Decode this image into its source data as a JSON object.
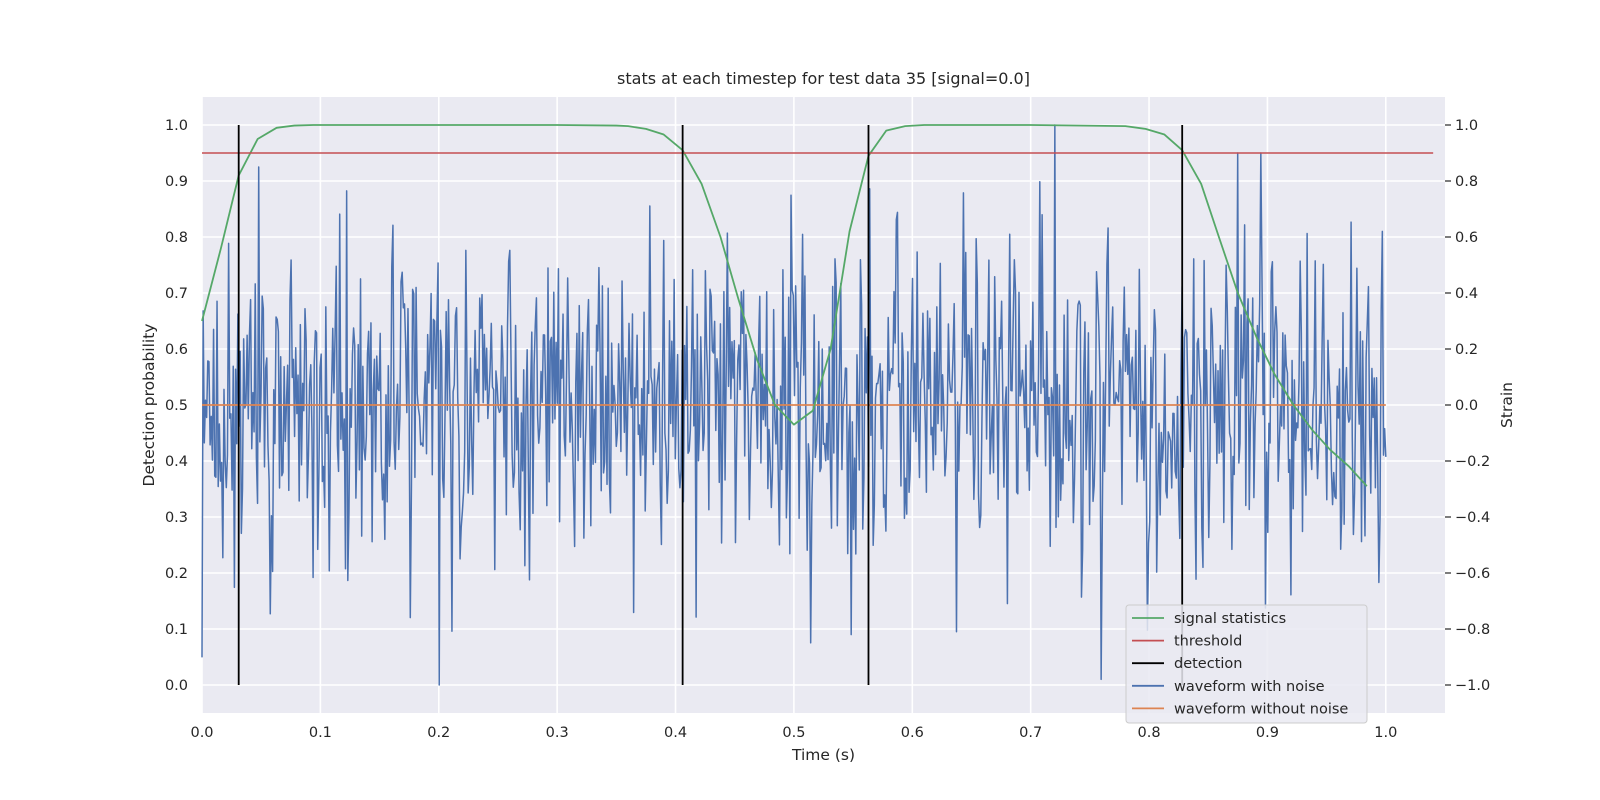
{
  "chart_data": {
    "type": "line",
    "title": "stats at each timestep for test data 35 [signal=0.0]",
    "xlabel": "Time (s)",
    "ylabel_left": "Detection probability",
    "ylabel_right": "Strain",
    "xlim": [
      0.0,
      1.05
    ],
    "ylim_left": [
      -0.05,
      1.05
    ],
    "ylim_right": [
      -1.1,
      1.1
    ],
    "x_ticks": [
      "0.0",
      "0.1",
      "0.2",
      "0.3",
      "0.4",
      "0.5",
      "0.6",
      "0.7",
      "0.8",
      "0.9",
      "1.0"
    ],
    "y_ticks_left": [
      "0.0",
      "0.1",
      "0.2",
      "0.3",
      "0.4",
      "0.5",
      "0.6",
      "0.7",
      "0.8",
      "0.9",
      "1.0"
    ],
    "y_ticks_right": [
      "−1.0",
      "−0.8",
      "−0.6",
      "−0.4",
      "−0.2",
      "0.0",
      "0.2",
      "0.4",
      "0.6",
      "0.8",
      "1.0"
    ],
    "grid": true,
    "legend_position": "lower-right",
    "series": [
      {
        "name": "signal statistics",
        "color": "#55a868",
        "axis": "left",
        "x": [
          0.0,
          0.016,
          0.031,
          0.047,
          0.063,
          0.078,
          0.094,
          0.11,
          0.2,
          0.3,
          0.35,
          0.36,
          0.375,
          0.39,
          0.406,
          0.422,
          0.438,
          0.453,
          0.469,
          0.484,
          0.5,
          0.516,
          0.531,
          0.547,
          0.563,
          0.578,
          0.594,
          0.61,
          0.7,
          0.78,
          0.797,
          0.813,
          0.828,
          0.844,
          0.859,
          0.875,
          0.891,
          0.906,
          0.922,
          0.938,
          0.953,
          0.969,
          0.984
        ],
        "values": [
          0.65,
          0.78,
          0.91,
          0.975,
          0.995,
          0.999,
          1.0,
          1.0,
          1.0,
          1.0,
          0.999,
          0.998,
          0.993,
          0.983,
          0.955,
          0.895,
          0.8,
          0.69,
          0.58,
          0.5,
          0.465,
          0.49,
          0.6,
          0.81,
          0.945,
          0.99,
          0.998,
          1.0,
          1.0,
          0.998,
          0.993,
          0.983,
          0.955,
          0.895,
          0.8,
          0.7,
          0.62,
          0.555,
          0.5,
          0.455,
          0.42,
          0.39,
          0.355
        ]
      },
      {
        "name": "threshold",
        "color": "#c44e52",
        "axis": "left",
        "x": [
          0.0,
          1.04
        ],
        "values": [
          0.95,
          0.95
        ]
      },
      {
        "name": "detection",
        "color": "#000000",
        "axis": "left",
        "x": [
          0.031,
          0.406,
          0.563,
          0.828
        ],
        "values": [
          [
            0.0,
            1.0
          ],
          [
            0.0,
            1.0
          ],
          [
            0.0,
            1.0
          ],
          [
            0.0,
            1.0
          ]
        ]
      },
      {
        "name": "waveform with noise",
        "color": "#4c72b0",
        "axis": "right",
        "x_range": [
          0.0,
          1.0
        ],
        "noise_std": 0.28,
        "marked_points": [
          {
            "x": 0.048,
            "y": 0.85
          },
          {
            "x": 0.2,
            "y": -1.0
          },
          {
            "x": 0.72,
            "y": 1.0
          },
          {
            "x": 0.637,
            "y": -0.81
          },
          {
            "x": 0.997,
            "y": 0.62
          }
        ]
      },
      {
        "name": "waveform without noise",
        "color": "#dd8452",
        "axis": "right",
        "x": [
          0.0,
          1.0
        ],
        "values": [
          0.0,
          0.0
        ]
      }
    ]
  },
  "colors": {
    "plot_background": "#eaeaf2",
    "grid": "#ffffff",
    "text": "#262626"
  }
}
